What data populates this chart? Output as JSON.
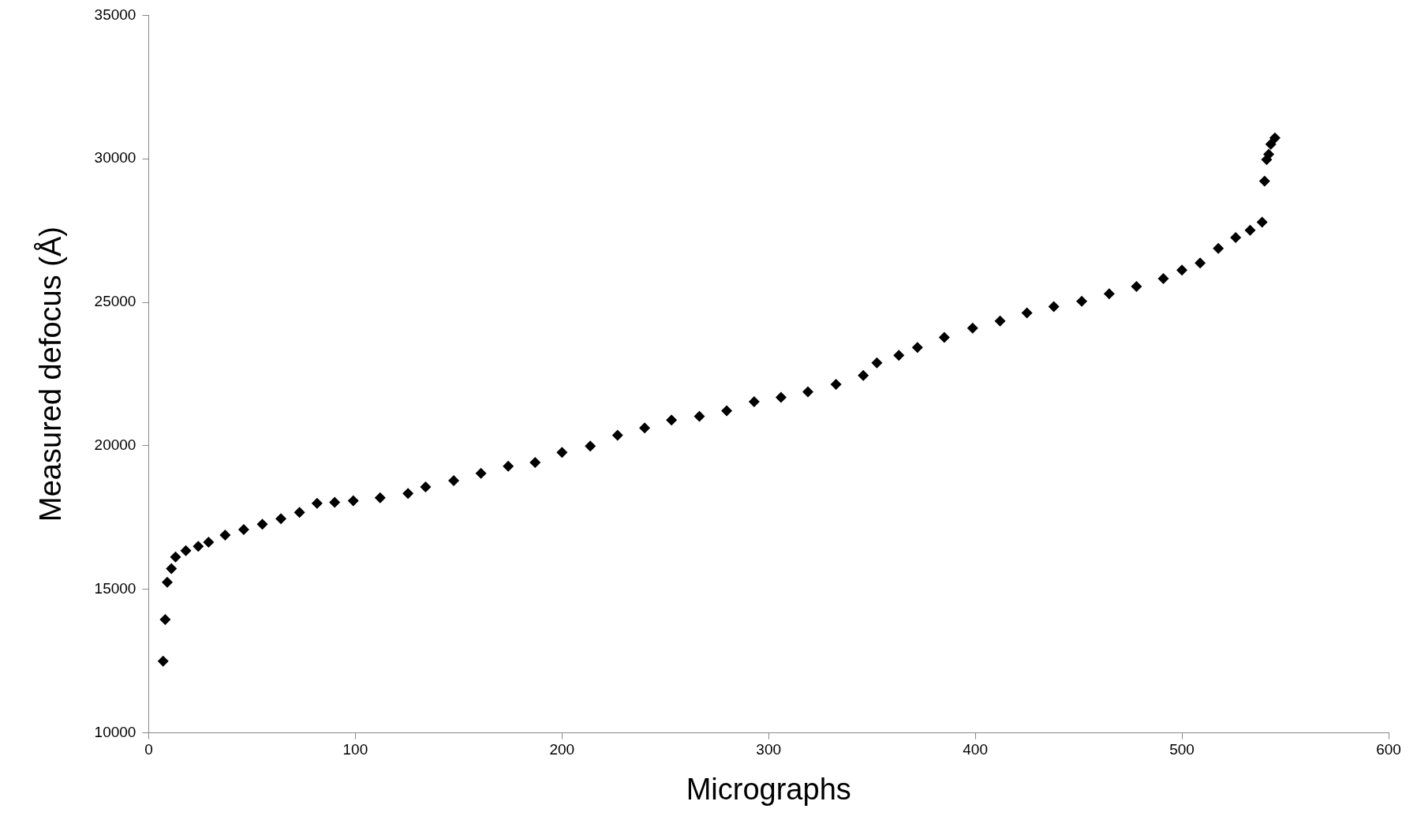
{
  "chart_data": {
    "type": "scatter",
    "xlabel": "Micrographs",
    "ylabel": "Measured defocus (Å)",
    "xlim": [
      0,
      600
    ],
    "ylim": [
      10000,
      35000
    ],
    "xticks": [
      0,
      100,
      200,
      300,
      400,
      500,
      600
    ],
    "yticks": [
      10000,
      15000,
      20000,
      25000,
      30000,
      35000
    ],
    "grid": false,
    "legend": false,
    "marker": "diamond",
    "series": [
      {
        "color": "#000000",
        "x": [
          7,
          8,
          9,
          11,
          13,
          18,
          24,
          29,
          37,
          46,
          55,
          64,
          73,
          81.5,
          90,
          99,
          112,
          125.5,
          134,
          147.6,
          160.8,
          174,
          187,
          200,
          213.7,
          226.9,
          240,
          253,
          266.5,
          279.7,
          293,
          306,
          319,
          332.6,
          345.8,
          352.4,
          363,
          372,
          385,
          398.7,
          412,
          425,
          438,
          451.5,
          464.8,
          478,
          491,
          500,
          508.8,
          517.6,
          526,
          533,
          538.8,
          540,
          541,
          542,
          543,
          545
        ],
        "values": [
          12500,
          13950,
          15250,
          15720,
          16130,
          16350,
          16500,
          16640,
          16890,
          17080,
          17270,
          17460,
          17680,
          18000,
          18030,
          18090,
          18190,
          18340,
          18570,
          18790,
          19040,
          19290,
          19420,
          19770,
          19990,
          20370,
          20620,
          20900,
          21030,
          21220,
          21540,
          21690,
          21880,
          22140,
          22450,
          22890,
          23150,
          23430,
          23780,
          24100,
          24350,
          24630,
          24850,
          25040,
          25300,
          25550,
          25830,
          26120,
          26370,
          26880,
          27260,
          27510,
          27790,
          29220,
          29970,
          30160,
          30510,
          30730
        ]
      }
    ]
  }
}
